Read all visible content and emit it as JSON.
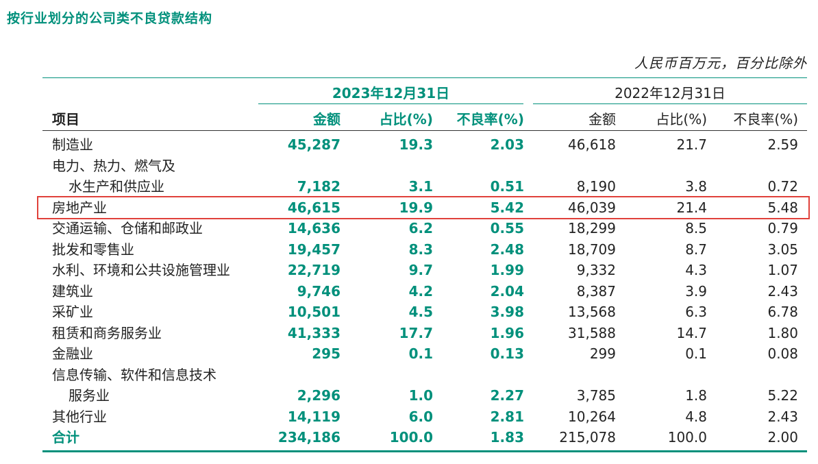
{
  "title": "按行业划分的公司类不良贷款结构",
  "unit_note": "人民币百万元，百分比除外",
  "periods": {
    "current": "2023年12月31日",
    "previous": "2022年12月31日"
  },
  "headers": {
    "item": "项目",
    "amount": "金额",
    "share": "占比(%)",
    "npl_ratio": "不良率(%)"
  },
  "rows": [
    {
      "label": "制造业",
      "cur_amount": "45,287",
      "cur_share": "19.3",
      "cur_npl": "2.03",
      "prev_amount": "46,618",
      "prev_share": "21.7",
      "prev_npl": "2.59"
    },
    {
      "label": "电力、热力、燃气及",
      "label2": "水生产和供应业",
      "cur_amount": "7,182",
      "cur_share": "3.1",
      "cur_npl": "0.51",
      "prev_amount": "8,190",
      "prev_share": "3.8",
      "prev_npl": "0.72"
    },
    {
      "label": "房地产业",
      "cur_amount": "46,615",
      "cur_share": "19.9",
      "cur_npl": "5.42",
      "prev_amount": "46,039",
      "prev_share": "21.4",
      "prev_npl": "5.48",
      "highlighted": true
    },
    {
      "label": "交通运输、仓储和邮政业",
      "cur_amount": "14,636",
      "cur_share": "6.2",
      "cur_npl": "0.55",
      "prev_amount": "18,299",
      "prev_share": "8.5",
      "prev_npl": "0.79"
    },
    {
      "label": "批发和零售业",
      "cur_amount": "19,457",
      "cur_share": "8.3",
      "cur_npl": "2.48",
      "prev_amount": "18,709",
      "prev_share": "8.7",
      "prev_npl": "3.05"
    },
    {
      "label": "水利、环境和公共设施管理业",
      "cur_amount": "22,719",
      "cur_share": "9.7",
      "cur_npl": "1.99",
      "prev_amount": "9,332",
      "prev_share": "4.3",
      "prev_npl": "1.07"
    },
    {
      "label": "建筑业",
      "cur_amount": "9,746",
      "cur_share": "4.2",
      "cur_npl": "2.04",
      "prev_amount": "8,387",
      "prev_share": "3.9",
      "prev_npl": "2.43"
    },
    {
      "label": "采矿业",
      "cur_amount": "10,501",
      "cur_share": "4.5",
      "cur_npl": "3.98",
      "prev_amount": "13,568",
      "prev_share": "6.3",
      "prev_npl": "6.78"
    },
    {
      "label": "租赁和商务服务业",
      "cur_amount": "41,333",
      "cur_share": "17.7",
      "cur_npl": "1.96",
      "prev_amount": "31,588",
      "prev_share": "14.7",
      "prev_npl": "1.80"
    },
    {
      "label": "金融业",
      "cur_amount": "295",
      "cur_share": "0.1",
      "cur_npl": "0.13",
      "prev_amount": "299",
      "prev_share": "0.1",
      "prev_npl": "0.08"
    },
    {
      "label": "信息传输、软件和信息技术",
      "label2": "服务业",
      "cur_amount": "2,296",
      "cur_share": "1.0",
      "cur_npl": "2.27",
      "prev_amount": "3,785",
      "prev_share": "1.8",
      "prev_npl": "5.22"
    },
    {
      "label": "其他行业",
      "cur_amount": "14,119",
      "cur_share": "6.0",
      "cur_npl": "2.81",
      "prev_amount": "10,264",
      "prev_share": "4.8",
      "prev_npl": "2.43"
    }
  ],
  "total": {
    "label": "合计",
    "cur_amount": "234,186",
    "cur_share": "100.0",
    "cur_npl": "1.83",
    "prev_amount": "215,078",
    "prev_share": "100.0",
    "prev_npl": "2.00"
  },
  "colors": {
    "accent": "#00907b",
    "highlight_border": "#e0403a",
    "text": "#222222"
  }
}
